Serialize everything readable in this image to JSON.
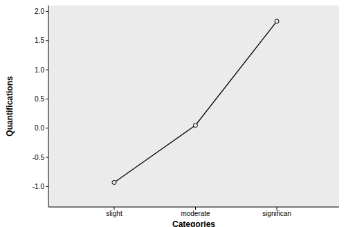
{
  "chart_data": {
    "type": "line",
    "x_label": "Categories",
    "y_label": "Quantifications",
    "categories": [
      "slight",
      "moderate",
      "significan"
    ],
    "values": [
      -0.93,
      0.05,
      1.83
    ],
    "color": "#000000",
    "marker": "circle",
    "line_style": "solid",
    "ylim": [
      -1.35,
      2.1
    ],
    "yticks": [
      {
        "value": -1.0,
        "label": "-1.0"
      },
      -0.5,
      {
        "value": 0.0,
        "label": "0.0"
      },
      0.5,
      {
        "value": 1.0,
        "label": "1.0"
      },
      1.5,
      {
        "value": 2.0,
        "label": "2.0"
      }
    ],
    "grid": false
  }
}
